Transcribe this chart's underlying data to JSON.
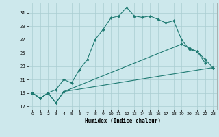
{
  "xlabel": "Humidex (Indice chaleur)",
  "background_color": "#cde8ec",
  "grid_color": "#aacdd2",
  "line_color": "#1e7a72",
  "xlim": [
    -0.5,
    23.5
  ],
  "ylim": [
    16.5,
    32.5
  ],
  "xticks": [
    0,
    1,
    2,
    3,
    4,
    5,
    6,
    7,
    8,
    9,
    10,
    11,
    12,
    13,
    14,
    15,
    16,
    17,
    18,
    19,
    20,
    21,
    22,
    23
  ],
  "yticks": [
    17,
    19,
    21,
    23,
    25,
    27,
    29,
    31
  ],
  "line1_x": [
    0,
    1,
    2,
    3,
    4,
    5,
    6,
    7,
    8,
    9,
    10,
    11,
    12,
    13,
    14,
    15,
    16,
    17,
    18,
    19,
    20,
    21,
    22
  ],
  "line1_y": [
    19.0,
    18.2,
    19.0,
    19.5,
    21.0,
    20.5,
    22.5,
    24.0,
    27.0,
    28.5,
    30.2,
    30.5,
    31.8,
    30.5,
    30.3,
    30.5,
    30.0,
    29.5,
    29.8,
    27.0,
    25.5,
    25.2,
    23.5
  ],
  "line2_x": [
    0,
    1,
    2,
    3,
    4,
    19,
    20,
    21,
    22,
    23
  ],
  "line2_y": [
    19.0,
    18.2,
    19.0,
    17.5,
    19.2,
    26.3,
    25.7,
    25.2,
    24.0,
    22.8
  ],
  "line3_x": [
    0,
    1,
    2,
    3,
    4,
    23
  ],
  "line3_y": [
    19.0,
    18.2,
    19.0,
    17.5,
    19.2,
    22.8
  ]
}
